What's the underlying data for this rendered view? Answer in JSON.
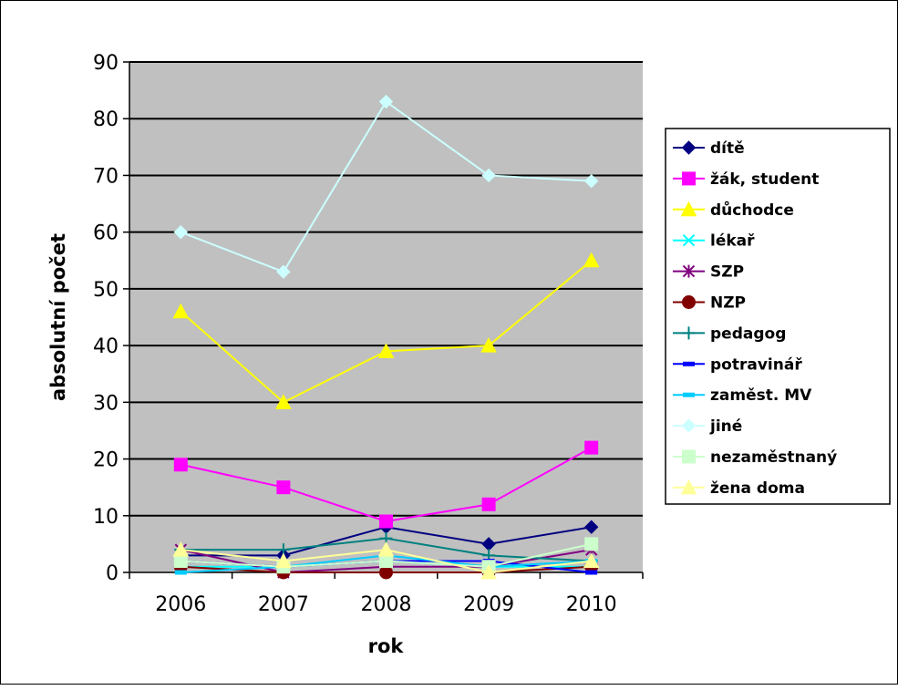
{
  "chart_data": {
    "type": "line",
    "title": "",
    "xlabel": "rok",
    "ylabel": "absolutní počet",
    "categories": [
      "2006",
      "2007",
      "2008",
      "2009",
      "2010"
    ],
    "ylim": [
      0,
      90
    ],
    "yticks": [
      0,
      10,
      20,
      30,
      40,
      50,
      60,
      70,
      80,
      90
    ],
    "grid": true,
    "plot_background": "#c0c0c0",
    "legend_position": "right",
    "series": [
      {
        "name": "dítě",
        "values": [
          3,
          3,
          8,
          5,
          8
        ],
        "color": "#000080",
        "marker": "diamond"
      },
      {
        "name": "žák, student",
        "values": [
          19,
          15,
          9,
          12,
          22
        ],
        "color": "#ff00ff",
        "marker": "square"
      },
      {
        "name": "důchodce",
        "values": [
          46,
          30,
          39,
          40,
          55
        ],
        "color": "#ffff00",
        "marker": "triangle"
      },
      {
        "name": "lékař",
        "values": [
          1,
          1,
          2,
          1,
          1
        ],
        "color": "#00ffff",
        "marker": "x"
      },
      {
        "name": "SZP",
        "values": [
          4,
          0,
          1,
          1,
          4
        ],
        "color": "#800080",
        "marker": "star"
      },
      {
        "name": "NZP",
        "values": [
          1,
          0,
          0,
          0,
          1
        ],
        "color": "#800000",
        "marker": "circle"
      },
      {
        "name": "pedagog",
        "values": [
          4,
          4,
          6,
          3,
          2
        ],
        "color": "#008080",
        "marker": "plus"
      },
      {
        "name": "potravinář",
        "values": [
          2,
          1,
          2,
          2,
          0
        ],
        "color": "#0000ff",
        "marker": "dash"
      },
      {
        "name": "zaměst. MV",
        "values": [
          0,
          1,
          3,
          1,
          2
        ],
        "color": "#00ccff",
        "marker": "dash"
      },
      {
        "name": "jiné",
        "values": [
          60,
          53,
          83,
          70,
          69
        ],
        "color": "#ccffff",
        "marker": "diamond"
      },
      {
        "name": "nezaměstnaný",
        "values": [
          2,
          1,
          2,
          1,
          5
        ],
        "color": "#ccffcc",
        "marker": "square"
      },
      {
        "name": "žena doma",
        "values": [
          4,
          2,
          4,
          0,
          2
        ],
        "color": "#ffff99",
        "marker": "triangle"
      }
    ]
  }
}
